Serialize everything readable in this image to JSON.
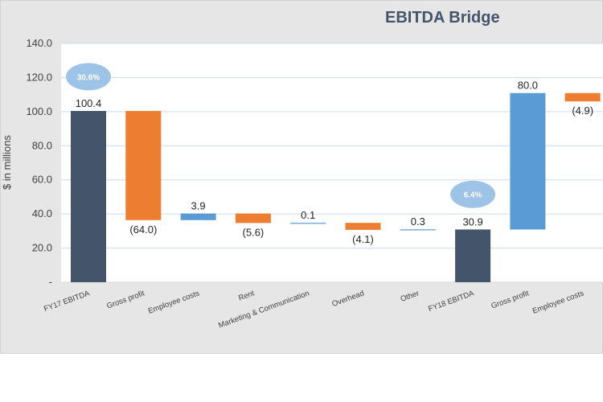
{
  "chart_data": {
    "type": "bar",
    "subtype": "waterfall",
    "title": "EBITDA Bridge",
    "ylabel": "$ in millions",
    "xlabel": "",
    "ylim": [
      0,
      140
    ],
    "y_ticks": [
      {
        "value": 0,
        "label": "-"
      },
      {
        "value": 20,
        "label": "20.0"
      },
      {
        "value": 40,
        "label": "40.0"
      },
      {
        "value": 60,
        "label": "60.0"
      },
      {
        "value": 80,
        "label": "80.0"
      },
      {
        "value": 100,
        "label": "100.0"
      },
      {
        "value": 120,
        "label": "120.0"
      },
      {
        "value": 140,
        "label": "140.0"
      }
    ],
    "grid": true,
    "colors": {
      "total": "#44546a",
      "increase": "#5b9bd5",
      "decrease": "#ed7d31",
      "grid": "#c9dcea",
      "bubble": "#9dc3e6"
    },
    "categories": [
      "FY17 EBITDA",
      "Gross profit",
      "Employee costs",
      "Rent",
      "Marketing & Communication",
      "Overhead",
      "Other",
      "FY18 EBITDA",
      "Gross profit",
      "Employee costs"
    ],
    "bars": [
      {
        "category": "FY17 EBITDA",
        "kind": "total",
        "start": 0,
        "end": 100.4,
        "label": "100.4"
      },
      {
        "category": "Gross profit",
        "kind": "decrease",
        "start": 100.4,
        "end": 36.4,
        "label": "(64.0)"
      },
      {
        "category": "Employee costs",
        "kind": "increase",
        "start": 36.4,
        "end": 40.3,
        "label": "3.9"
      },
      {
        "category": "Rent",
        "kind": "decrease",
        "start": 40.3,
        "end": 34.7,
        "label": "(5.6)"
      },
      {
        "category": "Marketing & Communication",
        "kind": "increase",
        "start": 34.7,
        "end": 34.8,
        "label": "0.1"
      },
      {
        "category": "Overhead",
        "kind": "decrease",
        "start": 34.8,
        "end": 30.7,
        "label": "(4.1)"
      },
      {
        "category": "Other",
        "kind": "increase",
        "start": 30.7,
        "end": 31.0,
        "label": "0.3"
      },
      {
        "category": "FY18 EBITDA",
        "kind": "total",
        "start": 0,
        "end": 30.9,
        "label": "30.9"
      },
      {
        "category": "Gross profit",
        "kind": "increase",
        "start": 30.9,
        "end": 110.9,
        "label": "80.0"
      },
      {
        "category": "Employee costs",
        "kind": "decrease",
        "start": 110.9,
        "end": 106.0,
        "label": "(4.9)"
      }
    ],
    "annotations": [
      {
        "text": "30.6%",
        "category_index": 0,
        "y": 120.5
      },
      {
        "text": "6.4%",
        "category_index": 7,
        "y": 51.5
      }
    ]
  }
}
